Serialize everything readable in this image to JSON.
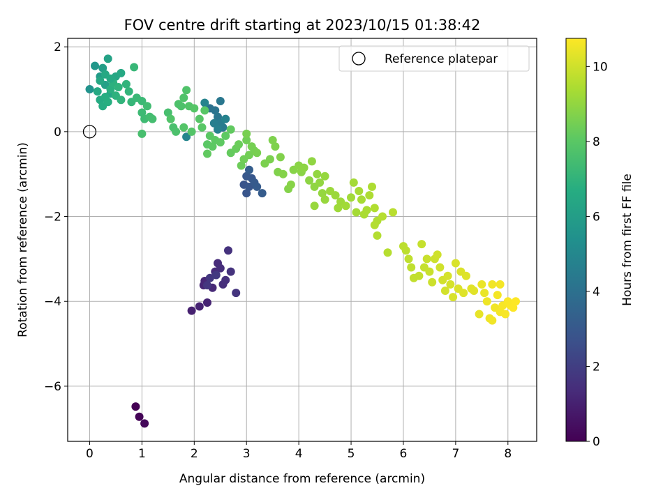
{
  "chart_data": {
    "type": "scatter",
    "title": "FOV centre drift starting at 2023/10/15 01:38:42",
    "xlabel": "Angular distance from reference (arcmin)",
    "ylabel": "Rotation from reference (arcmin)",
    "xlim": [
      -0.42,
      8.55
    ],
    "ylim": [
      -7.3,
      2.2
    ],
    "x_ticks": [
      0,
      1,
      2,
      3,
      4,
      5,
      6,
      7,
      8
    ],
    "y_ticks": [
      -6,
      -4,
      -2,
      0,
      2
    ],
    "x_tick_labels": [
      "0",
      "1",
      "2",
      "3",
      "4",
      "5",
      "6",
      "7",
      "8"
    ],
    "y_tick_labels": [
      "−6",
      "−4",
      "−2",
      "0",
      "2"
    ],
    "grid": true,
    "legend": {
      "placement": "top-right",
      "entries": [
        "Reference platepar"
      ]
    },
    "colorbar": {
      "label": "Hours from first FF file",
      "colormap": "viridis",
      "range": [
        0,
        10.75
      ],
      "ticks": [
        0,
        2,
        4,
        6,
        8,
        10
      ],
      "tick_labels": [
        "0",
        "2",
        "4",
        "6",
        "8",
        "10"
      ]
    },
    "reference_point": {
      "name": "Reference platepar",
      "x": 0,
      "y": 0,
      "marker": "hollow-circle"
    },
    "series": [
      {
        "columns": [
          "x",
          "y",
          "hours"
        ],
        "points": [
          [
            0.88,
            -6.48,
            0.0
          ],
          [
            0.95,
            -6.72,
            0.1
          ],
          [
            1.05,
            -6.88,
            0.2
          ],
          [
            1.95,
            -4.22,
            1.0
          ],
          [
            2.1,
            -4.12,
            1.05
          ],
          [
            2.25,
            -4.03,
            1.1
          ],
          [
            2.18,
            -3.62,
            1.15
          ],
          [
            2.2,
            -3.52,
            1.2
          ],
          [
            2.35,
            -3.68,
            1.25
          ],
          [
            2.4,
            -3.3,
            1.3
          ],
          [
            2.45,
            -3.1,
            1.35
          ],
          [
            2.5,
            -3.22,
            1.4
          ],
          [
            2.55,
            -3.6,
            1.45
          ],
          [
            2.6,
            -3.5,
            1.5
          ],
          [
            2.65,
            -2.8,
            1.55
          ],
          [
            2.7,
            -3.3,
            1.6
          ],
          [
            2.8,
            -3.8,
            1.65
          ],
          [
            2.25,
            -3.62,
            1.7
          ],
          [
            2.3,
            -3.45,
            1.75
          ],
          [
            2.42,
            -3.38,
            1.8
          ],
          [
            2.95,
            -1.25,
            2.8
          ],
          [
            3.0,
            -1.45,
            2.85
          ],
          [
            3.05,
            -1.3,
            2.9
          ],
          [
            3.1,
            -1.1,
            2.95
          ],
          [
            3.0,
            -1.05,
            3.0
          ],
          [
            3.15,
            -1.2,
            3.05
          ],
          [
            3.2,
            -1.3,
            3.1
          ],
          [
            3.3,
            -1.45,
            3.15
          ],
          [
            3.05,
            -0.9,
            3.2
          ],
          [
            2.3,
            0.55,
            4.0
          ],
          [
            2.4,
            0.5,
            4.1
          ],
          [
            2.45,
            0.35,
            4.2
          ],
          [
            2.5,
            0.72,
            4.3
          ],
          [
            2.55,
            0.1,
            4.4
          ],
          [
            2.5,
            0.2,
            4.5
          ],
          [
            2.38,
            0.2,
            4.6
          ],
          [
            2.45,
            0.05,
            4.7
          ],
          [
            2.6,
            0.3,
            4.75
          ],
          [
            2.2,
            0.68,
            4.8
          ],
          [
            1.85,
            -0.12,
            4.9
          ],
          [
            0.0,
            1.0,
            5.5
          ],
          [
            0.1,
            1.55,
            5.7
          ],
          [
            0.2,
            1.3,
            5.9
          ],
          [
            0.25,
            1.5,
            6.0
          ],
          [
            0.3,
            1.1,
            6.1
          ],
          [
            0.35,
            1.72,
            6.2
          ],
          [
            0.4,
            0.9,
            6.3
          ],
          [
            0.5,
            1.3,
            6.4
          ],
          [
            0.6,
            1.38,
            6.5
          ],
          [
            0.15,
            0.95,
            6.55
          ],
          [
            0.2,
            0.75,
            6.6
          ],
          [
            0.25,
            0.6,
            6.65
          ],
          [
            0.3,
            0.82,
            6.7
          ],
          [
            0.35,
            0.7,
            6.75
          ],
          [
            0.4,
            1.0,
            6.8
          ],
          [
            0.45,
            1.15,
            6.85
          ],
          [
            0.5,
            0.85,
            6.9
          ],
          [
            0.55,
            1.05,
            6.95
          ],
          [
            0.6,
            0.75,
            7.0
          ],
          [
            0.7,
            1.12,
            7.0
          ],
          [
            0.75,
            0.95,
            7.05
          ],
          [
            0.8,
            0.7,
            7.1
          ],
          [
            0.85,
            1.52,
            7.15
          ],
          [
            0.9,
            0.8,
            7.2
          ],
          [
            1.0,
            0.72,
            7.25
          ],
          [
            0.2,
            1.2,
            6.45
          ],
          [
            0.3,
            1.35,
            6.5
          ],
          [
            0.4,
            1.25,
            6.55
          ],
          [
            1.0,
            0.45,
            7.3
          ],
          [
            1.05,
            0.3,
            7.35
          ],
          [
            1.1,
            0.6,
            7.4
          ],
          [
            1.15,
            0.35,
            7.45
          ],
          [
            1.2,
            0.3,
            7.5
          ],
          [
            1.0,
            -0.05,
            7.55
          ],
          [
            1.5,
            0.45,
            7.55
          ],
          [
            1.6,
            0.1,
            7.6
          ],
          [
            1.65,
            0.0,
            7.65
          ],
          [
            1.7,
            0.65,
            7.7
          ],
          [
            1.75,
            0.6,
            7.7
          ],
          [
            1.8,
            0.8,
            7.75
          ],
          [
            1.85,
            0.98,
            7.75
          ],
          [
            1.9,
            0.6,
            7.8
          ],
          [
            1.55,
            0.3,
            7.8
          ],
          [
            1.8,
            0.1,
            7.85
          ],
          [
            1.95,
            0.0,
            7.85
          ],
          [
            2.0,
            0.55,
            7.9
          ],
          [
            2.1,
            0.3,
            7.9
          ],
          [
            2.15,
            0.1,
            7.95
          ],
          [
            2.2,
            0.5,
            7.95
          ],
          [
            2.25,
            -0.3,
            8.0
          ],
          [
            2.3,
            -0.1,
            8.0
          ],
          [
            2.35,
            -0.35,
            8.05
          ],
          [
            2.4,
            -0.2,
            8.05
          ],
          [
            2.5,
            -0.25,
            8.1
          ],
          [
            2.6,
            -0.1,
            8.1
          ],
          [
            2.7,
            0.05,
            8.15
          ],
          [
            2.25,
            -0.52,
            8.15
          ],
          [
            2.7,
            -0.5,
            8.2
          ],
          [
            2.8,
            -0.4,
            8.25
          ],
          [
            2.85,
            -0.3,
            8.3
          ],
          [
            2.9,
            -0.8,
            8.35
          ],
          [
            2.95,
            -0.65,
            8.4
          ],
          [
            3.0,
            -0.2,
            8.4
          ],
          [
            3.05,
            -0.55,
            8.45
          ],
          [
            3.1,
            -0.35,
            8.5
          ],
          [
            3.15,
            -0.45,
            8.5
          ],
          [
            3.2,
            -0.5,
            8.55
          ],
          [
            3.0,
            -0.05,
            8.55
          ],
          [
            3.35,
            -0.75,
            8.6
          ],
          [
            3.45,
            -0.65,
            8.6
          ],
          [
            3.5,
            -0.2,
            8.65
          ],
          [
            3.55,
            -0.35,
            8.65
          ],
          [
            3.6,
            -0.95,
            8.7
          ],
          [
            3.65,
            -0.6,
            8.7
          ],
          [
            3.7,
            -1.0,
            8.75
          ],
          [
            3.8,
            -1.35,
            8.75
          ],
          [
            3.85,
            -1.25,
            8.8
          ],
          [
            3.9,
            -0.9,
            8.8
          ],
          [
            4.0,
            -0.8,
            8.85
          ],
          [
            4.05,
            -0.95,
            8.85
          ],
          [
            4.1,
            -0.85,
            8.9
          ],
          [
            4.2,
            -1.15,
            8.9
          ],
          [
            4.25,
            -0.7,
            8.95
          ],
          [
            4.3,
            -1.3,
            8.95
          ],
          [
            4.35,
            -1.0,
            9.0
          ],
          [
            4.4,
            -1.2,
            9.0
          ],
          [
            4.45,
            -1.45,
            9.05
          ],
          [
            4.5,
            -1.05,
            9.05
          ],
          [
            4.3,
            -1.75,
            9.1
          ],
          [
            4.5,
            -1.6,
            9.1
          ],
          [
            4.6,
            -1.4,
            9.15
          ],
          [
            4.7,
            -1.5,
            9.15
          ],
          [
            4.75,
            -1.8,
            9.2
          ],
          [
            4.8,
            -1.65,
            9.2
          ],
          [
            4.9,
            -1.75,
            9.25
          ],
          [
            5.0,
            -1.55,
            9.25
          ],
          [
            5.05,
            -1.2,
            9.3
          ],
          [
            5.1,
            -1.9,
            9.3
          ],
          [
            5.15,
            -1.4,
            9.35
          ],
          [
            5.2,
            -1.6,
            9.35
          ],
          [
            5.25,
            -1.95,
            9.4
          ],
          [
            5.3,
            -1.85,
            9.4
          ],
          [
            5.35,
            -1.5,
            9.45
          ],
          [
            5.4,
            -1.3,
            9.45
          ],
          [
            5.45,
            -1.8,
            9.5
          ],
          [
            5.5,
            -2.1,
            9.5
          ],
          [
            5.45,
            -2.2,
            9.55
          ],
          [
            5.5,
            -2.45,
            9.55
          ],
          [
            5.6,
            -2.0,
            9.6
          ],
          [
            5.7,
            -2.85,
            9.6
          ],
          [
            5.8,
            -1.9,
            9.65
          ],
          [
            6.0,
            -2.7,
            9.7
          ],
          [
            6.05,
            -2.8,
            9.7
          ],
          [
            6.1,
            -3.0,
            9.75
          ],
          [
            6.15,
            -3.2,
            9.75
          ],
          [
            6.2,
            -3.45,
            9.8
          ],
          [
            6.3,
            -3.4,
            9.8
          ],
          [
            6.35,
            -2.65,
            9.85
          ],
          [
            6.4,
            -3.2,
            9.85
          ],
          [
            6.45,
            -3.0,
            9.9
          ],
          [
            6.5,
            -3.3,
            9.9
          ],
          [
            6.55,
            -3.55,
            9.95
          ],
          [
            6.6,
            -3.0,
            9.95
          ],
          [
            6.65,
            -2.9,
            10.0
          ],
          [
            6.7,
            -3.2,
            10.0
          ],
          [
            6.75,
            -3.5,
            10.05
          ],
          [
            6.8,
            -3.75,
            10.05
          ],
          [
            6.85,
            -3.4,
            10.1
          ],
          [
            6.9,
            -3.6,
            10.1
          ],
          [
            6.95,
            -3.9,
            10.15
          ],
          [
            7.0,
            -3.1,
            10.15
          ],
          [
            7.05,
            -3.7,
            10.2
          ],
          [
            7.1,
            -3.3,
            10.2
          ],
          [
            7.15,
            -3.8,
            10.25
          ],
          [
            7.2,
            -3.4,
            10.25
          ],
          [
            7.3,
            -3.7,
            10.3
          ],
          [
            7.35,
            -3.75,
            10.3
          ],
          [
            7.45,
            -4.3,
            10.4
          ],
          [
            7.5,
            -3.6,
            10.45
          ],
          [
            7.55,
            -3.8,
            10.45
          ],
          [
            7.6,
            -4.0,
            10.5
          ],
          [
            7.65,
            -4.4,
            10.5
          ],
          [
            7.7,
            -3.6,
            10.55
          ],
          [
            7.75,
            -4.15,
            10.55
          ],
          [
            7.8,
            -3.85,
            10.6
          ],
          [
            7.85,
            -4.25,
            10.6
          ],
          [
            7.9,
            -4.1,
            10.65
          ],
          [
            7.95,
            -4.3,
            10.65
          ],
          [
            8.0,
            -4.0,
            10.7
          ],
          [
            8.05,
            -4.1,
            10.7
          ],
          [
            8.1,
            -4.15,
            10.75
          ],
          [
            8.15,
            -4.0,
            10.75
          ],
          [
            7.85,
            -3.6,
            10.6
          ],
          [
            7.7,
            -4.45,
            10.55
          ]
        ]
      }
    ]
  }
}
